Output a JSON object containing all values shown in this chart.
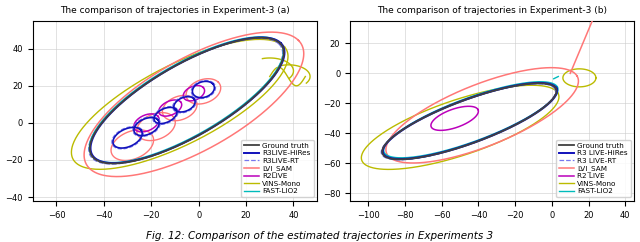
{
  "title_a": "The comparison of trajectories in Experiment-3 (a)",
  "title_b": "The comparison of trajectories in Experiment-3 (b)",
  "caption": "Fig. 12: Comparison of the estimated trajectories in Experiments 3",
  "xlim_a": [
    -70,
    50
  ],
  "ylim_a": [
    -42,
    55
  ],
  "xlim_b": [
    -110,
    45
  ],
  "ylim_b": [
    -85,
    35
  ],
  "colors": {
    "ground_truth": "#404040",
    "r3live_hires": "#1111bb",
    "r3live_rt": "#7777ee",
    "lvi_sam": "#ff7777",
    "r2live": "#bb00bb",
    "vins_mono": "#bbbb00",
    "fast_lio2": "#00bbbb"
  },
  "figsize": [
    6.4,
    2.42
  ],
  "dpi": 100
}
